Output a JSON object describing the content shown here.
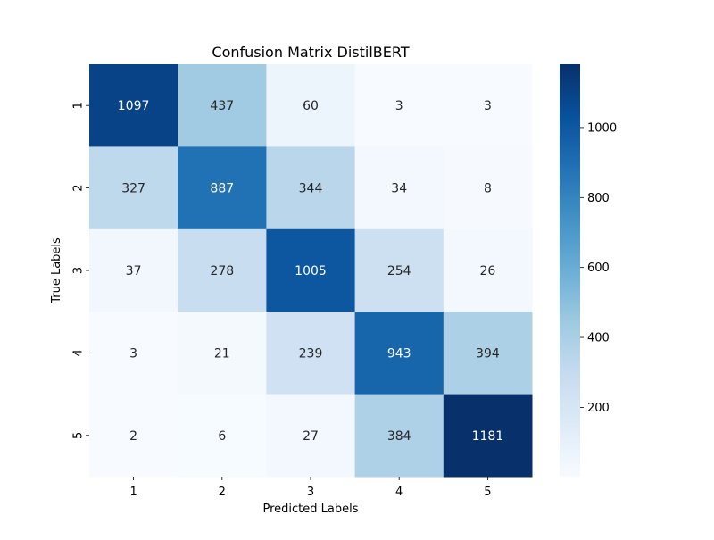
{
  "chart_data": {
    "type": "heatmap",
    "title": "Confusion Matrix DistilBERT",
    "xlabel": "Predicted Labels",
    "ylabel": "True Labels",
    "x_categories": [
      "1",
      "2",
      "3",
      "4",
      "5"
    ],
    "y_categories": [
      "1",
      "2",
      "3",
      "4",
      "5"
    ],
    "values": [
      [
        1097,
        437,
        60,
        3,
        3
      ],
      [
        327,
        887,
        344,
        34,
        8
      ],
      [
        37,
        278,
        1005,
        254,
        26
      ],
      [
        3,
        21,
        239,
        943,
        394
      ],
      [
        2,
        6,
        27,
        384,
        1181
      ]
    ],
    "colormap": "Blues",
    "vmin": 2,
    "vmax": 1181,
    "colorbar_ticks": [
      200,
      400,
      600,
      800,
      1000
    ],
    "colorbar_tick_labels": [
      "200",
      "400",
      "600",
      "800",
      "1000"
    ]
  }
}
